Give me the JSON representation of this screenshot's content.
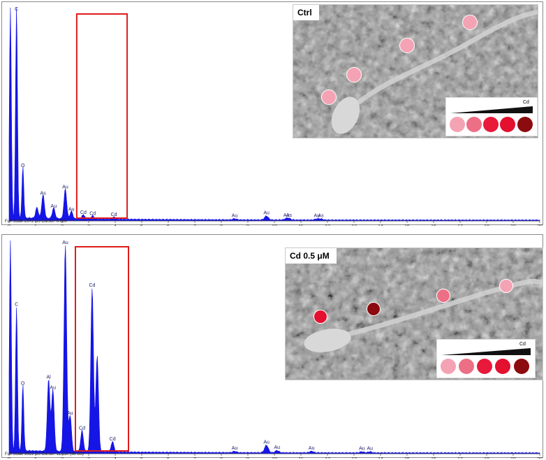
{
  "colors": {
    "spectrum": "#1515e6",
    "region_box": "#e01b1b",
    "dot_level_1": "#f4a3b4",
    "dot_level_2": "#ec6f86",
    "dot_level_3": "#e8193a",
    "dot_level_4": "#e3102f",
    "dot_level_5": "#8b0b0f"
  },
  "chart_data": [
    {
      "type": "area",
      "name_panel": "top",
      "xlabel": "keV",
      "xlim": [
        0,
        20
      ],
      "x_ticks": [
        "0",
        "1",
        "2",
        "3",
        "4",
        "5",
        "6",
        "7",
        "8",
        "9",
        "10",
        "11",
        "12",
        "13",
        "14",
        "15",
        "16",
        "17",
        "18",
        "19",
        "20"
      ],
      "footer": "Full Scale 2072 cts Cursor: 0.000",
      "sample_label": "Ctrl",
      "legend_label": "Cd",
      "peaks": [
        {
          "label": "C",
          "x": 0.28,
          "y": 1.0,
          "show_label": true
        },
        {
          "label": "",
          "x": 0.05,
          "y": 1.0,
          "show_label": false
        },
        {
          "label": "O",
          "x": 0.52,
          "y": 0.24,
          "show_label": true
        },
        {
          "label": "",
          "x": 1.05,
          "y": 0.05,
          "show_label": false
        },
        {
          "label": "As",
          "x": 1.28,
          "y": 0.11,
          "show_label": true
        },
        {
          "label": "Au",
          "x": 1.68,
          "y": 0.05,
          "show_label": true
        },
        {
          "label": "Au",
          "x": 2.12,
          "y": 0.14,
          "show_label": true
        },
        {
          "label": "Au",
          "x": 2.35,
          "y": 0.035,
          "show_label": true
        },
        {
          "label": "Cd",
          "x": 2.8,
          "y": 0.02,
          "show_label": true
        },
        {
          "label": "Cd",
          "x": 3.15,
          "y": 0.015,
          "show_label": true
        },
        {
          "label": "Cd",
          "x": 3.95,
          "y": 0.01,
          "show_label": true
        },
        {
          "label": "Au",
          "x": 8.5,
          "y": 0.005,
          "show_label": true
        },
        {
          "label": "Au",
          "x": 9.7,
          "y": 0.018,
          "show_label": true
        },
        {
          "label": "Au",
          "x": 10.45,
          "y": 0.006,
          "show_label": true
        },
        {
          "label": "As",
          "x": 10.55,
          "y": 0.006,
          "show_label": true
        },
        {
          "label": "Au",
          "x": 11.6,
          "y": 0.005,
          "show_label": true
        },
        {
          "label": "As",
          "x": 11.75,
          "y": 0.005,
          "show_label": true
        }
      ],
      "highlight_range_kev": [
        2.55,
        4.45
      ]
    },
    {
      "type": "area",
      "name_panel": "bottom",
      "xlabel": "keV",
      "xlim": [
        0,
        20
      ],
      "x_ticks": [
        "0",
        "1",
        "2",
        "3",
        "4",
        "5",
        "6",
        "7",
        "8",
        "9",
        "10",
        "11",
        "12",
        "13",
        "14",
        "15",
        "16",
        "17",
        "18",
        "19",
        "20"
      ],
      "footer": "Full Scale 3923 cts Cursor: 11.110  (36 cts)",
      "sample_label": "Cd 0.5 μM",
      "legend_label": "Cd",
      "peaks": [
        {
          "label": "",
          "x": 0.05,
          "y": 1.0,
          "show_label": false
        },
        {
          "label": "C",
          "x": 0.28,
          "y": 0.68,
          "show_label": true
        },
        {
          "label": "O",
          "x": 0.52,
          "y": 0.31,
          "show_label": true
        },
        {
          "label": "Al",
          "x": 1.49,
          "y": 0.34,
          "show_label": true
        },
        {
          "label": "Au",
          "x": 1.65,
          "y": 0.29,
          "show_label": true
        },
        {
          "label": "Au",
          "x": 2.12,
          "y": 0.97,
          "show_label": true
        },
        {
          "label": "Au",
          "x": 2.3,
          "y": 0.17,
          "show_label": true
        },
        {
          "label": "Cd",
          "x": 2.75,
          "y": 0.1,
          "show_label": true
        },
        {
          "label": "Cd",
          "x": 3.13,
          "y": 0.77,
          "show_label": true
        },
        {
          "label": "",
          "x": 3.32,
          "y": 0.45,
          "show_label": false
        },
        {
          "label": "Cd",
          "x": 3.9,
          "y": 0.05,
          "show_label": true
        },
        {
          "label": "Au",
          "x": 8.5,
          "y": 0.006,
          "show_label": true
        },
        {
          "label": "Au",
          "x": 9.7,
          "y": 0.035,
          "show_label": true
        },
        {
          "label": "Au",
          "x": 10.1,
          "y": 0.01,
          "show_label": true
        },
        {
          "label": "Au",
          "x": 11.4,
          "y": 0.007,
          "show_label": true
        },
        {
          "label": "Au",
          "x": 13.3,
          "y": 0.005,
          "show_label": true
        },
        {
          "label": "Au",
          "x": 13.6,
          "y": 0.005,
          "show_label": true
        }
      ],
      "highlight_range_kev": [
        2.5,
        4.5
      ]
    }
  ]
}
